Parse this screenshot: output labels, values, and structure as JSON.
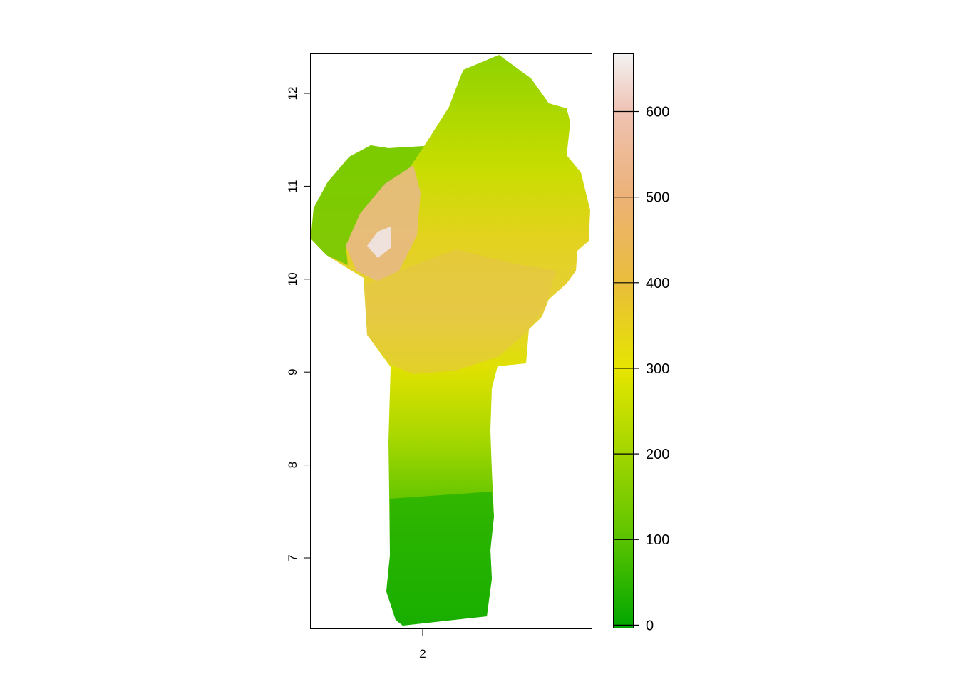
{
  "map": {
    "x_axis": {
      "ticks": [
        {
          "value": 2,
          "label": "2"
        }
      ]
    },
    "y_axis": {
      "ticks": [
        {
          "value": 7,
          "label": "7"
        },
        {
          "value": 8,
          "label": "8"
        },
        {
          "value": 9,
          "label": "9"
        },
        {
          "value": 10,
          "label": "10"
        },
        {
          "value": 11,
          "label": "11"
        },
        {
          "value": 12,
          "label": "12"
        }
      ]
    },
    "legend": {
      "type": "continuous-colorbar",
      "placement": "right",
      "range": [
        -3,
        667
      ],
      "ticks": [
        {
          "value": 0,
          "label": "0"
        },
        {
          "value": 100,
          "label": "100"
        },
        {
          "value": 200,
          "label": "200"
        },
        {
          "value": 300,
          "label": "300"
        },
        {
          "value": 400,
          "label": "400"
        },
        {
          "value": 500,
          "label": "500"
        },
        {
          "value": 600,
          "label": "600"
        }
      ],
      "colors": [
        "#00a600",
        "#63c600",
        "#e6e600",
        "#e9bd3a",
        "#ecb176",
        "#efc2b3",
        "#f2f2f2"
      ]
    },
    "raster": {
      "palette": "terrain.colors",
      "region_outline_color": "none"
    }
  }
}
